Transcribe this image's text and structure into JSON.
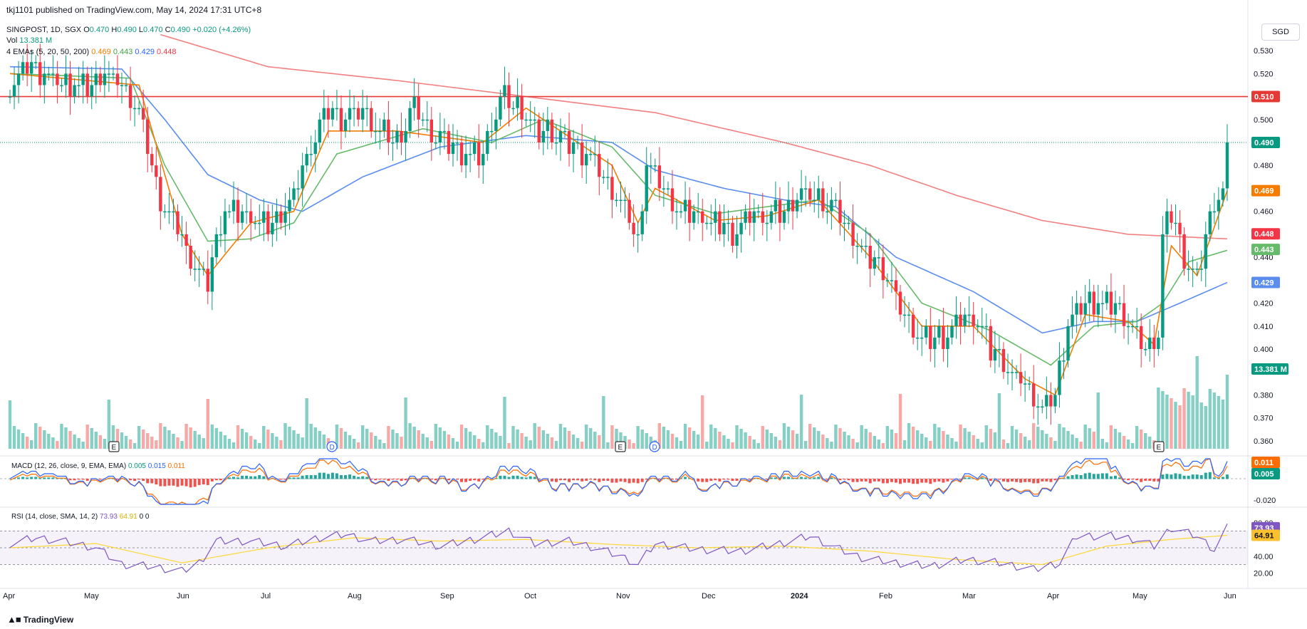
{
  "header": {
    "publisher": "tkj1101 published on TradingView.com, May 14, 2024 17:31 UTC+8",
    "symbol": "SINGPOST, 1D, SGX",
    "o_label": "O",
    "o": "0.470",
    "h_label": "H",
    "h": "0.490",
    "l_label": "L",
    "l": "0.470",
    "c_label": "C",
    "c": "0.490",
    "change": "+0.020 (+4.26%)",
    "vol_label": "Vol",
    "vol": "13.381 M",
    "ema_label": "4 EMAs (5, 20, 50, 200)",
    "ema5": "0.469",
    "ema20": "0.443",
    "ema50": "0.429",
    "ema200": "0.448"
  },
  "currency_button": "SGD",
  "brand": "TradingView",
  "macd_label": "MACD (12, 26, close, 9, EMA, EMA)",
  "macd_values": {
    "hist": "0.005",
    "macd": "0.015",
    "signal": "0.011"
  },
  "rsi_label": "RSI (14, close, SMA, 14, 2)",
  "rsi_values": {
    "rsi": "73.93",
    "sma": "64.91",
    "a": "0",
    "b": "0"
  },
  "colors": {
    "up": "#089981",
    "down": "#f23645",
    "vol_up": "#85cfc4",
    "vol_down": "#f7a9a7",
    "ema5": "#f57c00",
    "ema20": "#66bb6a",
    "ema50": "#5b8def",
    "ema200": "#f28080",
    "resistance": "#e53935",
    "macd": "#2962ff",
    "signal": "#ff6d00",
    "rsi": "#7e57c2",
    "rsi_sma": "#fdd835"
  },
  "chart_data": {
    "type": "candlestick",
    "title": "SINGPOST, 1D, SGX",
    "y_ticks": [
      "0.530",
      "0.520",
      "0.510",
      "0.500",
      "0.490",
      "0.480",
      "0.470",
      "0.460",
      "0.450",
      "0.440",
      "0.430",
      "0.420",
      "0.410",
      "0.400",
      "0.390",
      "0.380",
      "0.370",
      "0.360"
    ],
    "ylim": [
      0.355,
      0.535
    ],
    "x_ticks": [
      "Apr",
      "May",
      "Jun",
      "Jul",
      "Aug",
      "Sep",
      "Oct",
      "Nov",
      "Dec",
      "2024",
      "Feb",
      "Mar",
      "Apr",
      "May",
      "Jun"
    ],
    "resistance_level": 0.51,
    "last_close": 0.49,
    "price_labels": [
      {
        "value": "0.510",
        "role": "resistance"
      },
      {
        "value": "0.490",
        "role": "close"
      },
      {
        "value": "0.469",
        "role": "ema5"
      },
      {
        "value": "0.448",
        "role": "ema200"
      },
      {
        "value": "0.443",
        "role": "ema20"
      },
      {
        "value": "0.429",
        "role": "ema50"
      },
      {
        "value": "13.381 M",
        "role": "volume"
      }
    ],
    "close_anchors": [
      [
        0,
        0.515
      ],
      [
        4,
        0.525
      ],
      [
        8,
        0.52
      ],
      [
        12,
        0.515
      ],
      [
        18,
        0.513
      ],
      [
        22,
        0.52
      ],
      [
        26,
        0.515
      ],
      [
        30,
        0.505
      ],
      [
        34,
        0.47
      ],
      [
        38,
        0.455
      ],
      [
        42,
        0.44
      ],
      [
        46,
        0.43
      ],
      [
        50,
        0.46
      ],
      [
        54,
        0.46
      ],
      [
        58,
        0.455
      ],
      [
        62,
        0.455
      ],
      [
        66,
        0.465
      ],
      [
        70,
        0.49
      ],
      [
        74,
        0.505
      ],
      [
        78,
        0.5
      ],
      [
        82,
        0.505
      ],
      [
        86,
        0.495
      ],
      [
        90,
        0.49
      ],
      [
        94,
        0.505
      ],
      [
        98,
        0.495
      ],
      [
        102,
        0.49
      ],
      [
        106,
        0.485
      ],
      [
        110,
        0.485
      ],
      [
        114,
        0.51
      ],
      [
        118,
        0.505
      ],
      [
        122,
        0.495
      ],
      [
        126,
        0.495
      ],
      [
        130,
        0.49
      ],
      [
        134,
        0.485
      ],
      [
        138,
        0.475
      ],
      [
        142,
        0.465
      ],
      [
        146,
        0.447
      ],
      [
        148,
        0.48
      ],
      [
        152,
        0.47
      ],
      [
        156,
        0.46
      ],
      [
        160,
        0.458
      ],
      [
        164,
        0.455
      ],
      [
        168,
        0.45
      ],
      [
        172,
        0.458
      ],
      [
        176,
        0.458
      ],
      [
        180,
        0.46
      ],
      [
        184,
        0.467
      ],
      [
        188,
        0.465
      ],
      [
        192,
        0.46
      ],
      [
        196,
        0.448
      ],
      [
        200,
        0.44
      ],
      [
        204,
        0.43
      ],
      [
        208,
        0.415
      ],
      [
        212,
        0.405
      ],
      [
        216,
        0.405
      ],
      [
        220,
        0.41
      ],
      [
        224,
        0.415
      ],
      [
        228,
        0.4
      ],
      [
        232,
        0.39
      ],
      [
        236,
        0.385
      ],
      [
        240,
        0.375
      ],
      [
        243,
        0.38
      ],
      [
        246,
        0.41
      ],
      [
        250,
        0.42
      ],
      [
        254,
        0.42
      ],
      [
        258,
        0.418
      ],
      [
        262,
        0.405
      ],
      [
        265,
        0.4
      ],
      [
        267,
        0.405
      ],
      [
        268,
        0.45
      ],
      [
        270,
        0.46
      ],
      [
        272,
        0.445
      ],
      [
        274,
        0.435
      ],
      [
        276,
        0.428
      ],
      [
        278,
        0.45
      ],
      [
        280,
        0.465
      ],
      [
        282,
        0.47
      ],
      [
        283,
        0.49
      ]
    ],
    "ema5_anchors": [
      [
        0,
        0.52
      ],
      [
        30,
        0.515
      ],
      [
        40,
        0.45
      ],
      [
        46,
        0.432
      ],
      [
        56,
        0.455
      ],
      [
        66,
        0.46
      ],
      [
        74,
        0.495
      ],
      [
        90,
        0.495
      ],
      [
        110,
        0.49
      ],
      [
        120,
        0.505
      ],
      [
        140,
        0.48
      ],
      [
        146,
        0.455
      ],
      [
        150,
        0.47
      ],
      [
        164,
        0.456
      ],
      [
        176,
        0.458
      ],
      [
        188,
        0.465
      ],
      [
        200,
        0.44
      ],
      [
        212,
        0.41
      ],
      [
        224,
        0.41
      ],
      [
        236,
        0.387
      ],
      [
        243,
        0.38
      ],
      [
        250,
        0.415
      ],
      [
        260,
        0.412
      ],
      [
        266,
        0.402
      ],
      [
        270,
        0.445
      ],
      [
        276,
        0.432
      ],
      [
        283,
        0.469
      ]
    ],
    "ema20_anchors": [
      [
        0,
        0.52
      ],
      [
        28,
        0.518
      ],
      [
        36,
        0.48
      ],
      [
        46,
        0.447
      ],
      [
        56,
        0.448
      ],
      [
        66,
        0.455
      ],
      [
        76,
        0.485
      ],
      [
        96,
        0.496
      ],
      [
        112,
        0.49
      ],
      [
        124,
        0.5
      ],
      [
        140,
        0.488
      ],
      [
        150,
        0.467
      ],
      [
        164,
        0.459
      ],
      [
        188,
        0.465
      ],
      [
        200,
        0.45
      ],
      [
        212,
        0.42
      ],
      [
        228,
        0.408
      ],
      [
        242,
        0.393
      ],
      [
        252,
        0.41
      ],
      [
        262,
        0.412
      ],
      [
        268,
        0.42
      ],
      [
        274,
        0.438
      ],
      [
        283,
        0.443
      ]
    ],
    "ema50_anchors": [
      [
        0,
        0.523
      ],
      [
        26,
        0.522
      ],
      [
        36,
        0.5
      ],
      [
        46,
        0.476
      ],
      [
        58,
        0.465
      ],
      [
        68,
        0.46
      ],
      [
        82,
        0.475
      ],
      [
        100,
        0.488
      ],
      [
        120,
        0.493
      ],
      [
        140,
        0.49
      ],
      [
        150,
        0.478
      ],
      [
        166,
        0.47
      ],
      [
        180,
        0.465
      ],
      [
        192,
        0.462
      ],
      [
        206,
        0.44
      ],
      [
        224,
        0.425
      ],
      [
        240,
        0.407
      ],
      [
        252,
        0.412
      ],
      [
        262,
        0.412
      ],
      [
        272,
        0.42
      ],
      [
        283,
        0.429
      ]
    ],
    "ema200_anchors": [
      [
        35,
        0.537
      ],
      [
        60,
        0.523
      ],
      [
        90,
        0.517
      ],
      [
        120,
        0.51
      ],
      [
        150,
        0.503
      ],
      [
        180,
        0.49
      ],
      [
        200,
        0.48
      ],
      [
        220,
        0.467
      ],
      [
        240,
        0.456
      ],
      [
        260,
        0.45
      ],
      [
        283,
        0.448
      ]
    ],
    "macd_ticks": [
      "0.011",
      "0.005",
      "-0.020"
    ],
    "rsi_ticks": [
      "80.00",
      "40.00",
      "20.00"
    ],
    "rsi_anchors": [
      [
        0,
        55
      ],
      [
        6,
        62
      ],
      [
        12,
        58
      ],
      [
        20,
        50
      ],
      [
        26,
        30
      ],
      [
        32,
        28
      ],
      [
        40,
        22
      ],
      [
        44,
        32
      ],
      [
        48,
        58
      ],
      [
        56,
        58
      ],
      [
        64,
        52
      ],
      [
        72,
        62
      ],
      [
        78,
        66
      ],
      [
        84,
        58
      ],
      [
        92,
        60
      ],
      [
        100,
        52
      ],
      [
        108,
        60
      ],
      [
        116,
        70
      ],
      [
        122,
        55
      ],
      [
        130,
        58
      ],
      [
        136,
        50
      ],
      [
        142,
        40
      ],
      [
        146,
        30
      ],
      [
        150,
        55
      ],
      [
        160,
        48
      ],
      [
        170,
        46
      ],
      [
        180,
        56
      ],
      [
        186,
        64
      ],
      [
        192,
        50
      ],
      [
        198,
        38
      ],
      [
        206,
        32
      ],
      [
        214,
        28
      ],
      [
        222,
        36
      ],
      [
        230,
        32
      ],
      [
        238,
        24
      ],
      [
        244,
        32
      ],
      [
        248,
        64
      ],
      [
        256,
        64
      ],
      [
        262,
        60
      ],
      [
        266,
        52
      ],
      [
        270,
        74
      ],
      [
        276,
        64
      ],
      [
        280,
        48
      ],
      [
        283,
        73.93
      ]
    ],
    "rsi_sma_anchors": [
      [
        0,
        50
      ],
      [
        20,
        55
      ],
      [
        40,
        32
      ],
      [
        60,
        50
      ],
      [
        80,
        62
      ],
      [
        100,
        58
      ],
      [
        120,
        60
      ],
      [
        140,
        54
      ],
      [
        160,
        50
      ],
      [
        180,
        52
      ],
      [
        200,
        46
      ],
      [
        220,
        36
      ],
      [
        240,
        30
      ],
      [
        255,
        52
      ],
      [
        270,
        60
      ],
      [
        283,
        64.91
      ]
    ]
  }
}
